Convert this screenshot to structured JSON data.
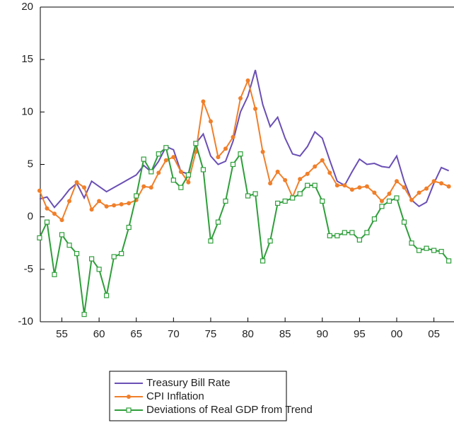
{
  "chart_data": {
    "type": "line",
    "x": [
      1952,
      1953,
      1954,
      1955,
      1956,
      1957,
      1958,
      1959,
      1960,
      1961,
      1962,
      1963,
      1964,
      1965,
      1966,
      1967,
      1968,
      1969,
      1970,
      1971,
      1972,
      1973,
      1974,
      1975,
      1976,
      1977,
      1978,
      1979,
      1980,
      1981,
      1982,
      1983,
      1984,
      1985,
      1986,
      1987,
      1988,
      1989,
      1990,
      1991,
      1992,
      1993,
      1994,
      1995,
      1996,
      1997,
      1998,
      1999,
      2000,
      2001,
      2002,
      2003,
      2004,
      2005,
      2006,
      2007
    ],
    "series": [
      {
        "name": "Treasury Bill Rate",
        "color": "#6a4fb5",
        "marker": "none",
        "values": [
          1.7,
          1.9,
          0.9,
          1.7,
          2.6,
          3.2,
          1.8,
          3.4,
          2.9,
          2.4,
          2.8,
          3.2,
          3.6,
          4.0,
          4.9,
          4.3,
          5.3,
          6.7,
          6.4,
          4.3,
          4.1,
          7.0,
          7.9,
          5.8,
          5.0,
          5.3,
          7.2,
          10.0,
          11.5,
          14.0,
          10.7,
          8.6,
          9.5,
          7.5,
          6.0,
          5.8,
          6.7,
          8.1,
          7.5,
          5.4,
          3.4,
          3.0,
          4.3,
          5.5,
          5.0,
          5.1,
          4.8,
          4.7,
          5.8,
          3.4,
          1.6,
          1.0,
          1.4,
          3.2,
          4.7,
          4.4
        ]
      },
      {
        "name": "CPI Inflation",
        "color": "#f07f2a",
        "marker": "circle",
        "values": [
          2.5,
          0.8,
          0.3,
          -0.3,
          1.5,
          3.3,
          2.8,
          0.7,
          1.5,
          1.0,
          1.1,
          1.2,
          1.3,
          1.6,
          2.9,
          2.8,
          4.2,
          5.4,
          5.7,
          4.3,
          3.3,
          6.2,
          11.0,
          9.1,
          5.7,
          6.5,
          7.6,
          11.3,
          13.0,
          10.3,
          6.2,
          3.2,
          4.3,
          3.5,
          1.9,
          3.6,
          4.1,
          4.8,
          5.4,
          4.2,
          3.0,
          3.0,
          2.6,
          2.8,
          2.9,
          2.3,
          1.5,
          2.2,
          3.4,
          2.8,
          1.6,
          2.3,
          2.7,
          3.4,
          3.2,
          2.9
        ]
      },
      {
        "name": "Deviations of Real GDP from Trend",
        "color": "#2e9e3a",
        "marker": "square",
        "values": [
          -2.0,
          -0.5,
          -5.5,
          -1.7,
          -2.7,
          -3.5,
          -9.3,
          -4.0,
          -5.0,
          -7.5,
          -3.8,
          -3.5,
          -1.0,
          2.0,
          5.5,
          4.3,
          6.0,
          6.6,
          3.5,
          2.8,
          4.0,
          7.0,
          4.5,
          -2.3,
          -0.5,
          1.5,
          5.0,
          6.0,
          2.0,
          2.2,
          -4.2,
          -2.3,
          1.3,
          1.5,
          1.8,
          2.2,
          3.0,
          3.0,
          1.5,
          -1.8,
          -1.8,
          -1.5,
          -1.5,
          -2.2,
          -1.5,
          -0.2,
          1.0,
          1.5,
          1.8,
          -0.5,
          -2.5,
          -3.2,
          -3.0,
          -3.2,
          -3.3,
          -4.2
        ]
      }
    ],
    "xlim": [
      1952.1,
      2007.7
    ],
    "ylim": [
      -10,
      20
    ],
    "yticks": [
      -10,
      -5,
      0,
      5,
      10,
      15,
      20
    ],
    "xticks": [
      {
        "value": 1955,
        "label": "55"
      },
      {
        "value": 1960,
        "label": "60"
      },
      {
        "value": 1965,
        "label": "65"
      },
      {
        "value": 1970,
        "label": "70"
      },
      {
        "value": 1975,
        "label": "75"
      },
      {
        "value": 1980,
        "label": "80"
      },
      {
        "value": 1985,
        "label": "85"
      },
      {
        "value": 1990,
        "label": "90"
      },
      {
        "value": 1995,
        "label": "95"
      },
      {
        "value": 2000,
        "label": "00"
      },
      {
        "value": 2005,
        "label": "05"
      }
    ],
    "grid": false
  }
}
